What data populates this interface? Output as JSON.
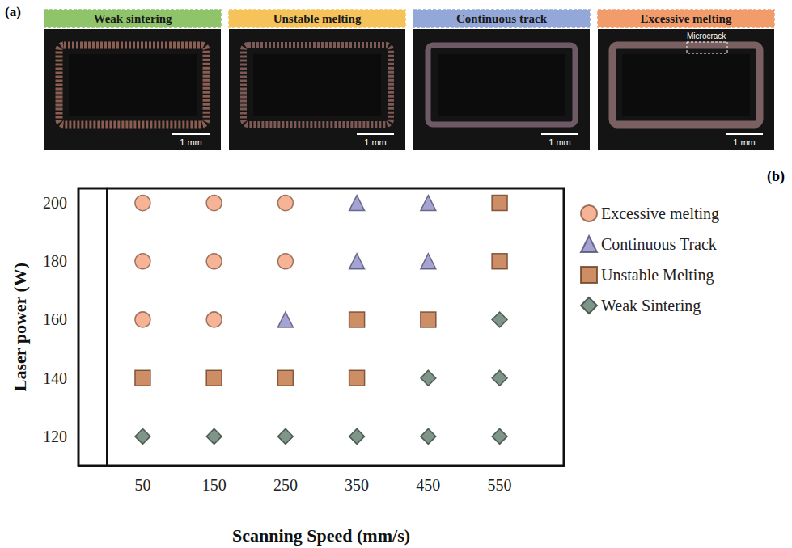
{
  "panel_a": {
    "label": "(a)",
    "panels": [
      {
        "title": "Weak sintering",
        "color": "#8fc46a",
        "scale_bar": "1 mm"
      },
      {
        "title": "Unstable melting",
        "color": "#f5c35a",
        "scale_bar": "1 mm"
      },
      {
        "title": "Continuous track",
        "color": "#93a8d8",
        "scale_bar": "1 mm"
      },
      {
        "title": "Excessive melting",
        "color": "#f29c6b",
        "scale_bar": "1 mm",
        "annotation": "Microcrack"
      }
    ]
  },
  "chart_data": {
    "type": "scatter",
    "panel_label": "(b)",
    "x_label": "Scanning Speed (mm/s)",
    "y_label": "Laser power (W)",
    "xlim": [
      -40,
      640
    ],
    "xticks": [
      50,
      150,
      250,
      350,
      450,
      550
    ],
    "ylim": [
      110,
      205
    ],
    "yticks": [
      120,
      140,
      160,
      180,
      200
    ],
    "grid": false,
    "legend": "right",
    "series": [
      {
        "name": "Excessive melting",
        "color": "#f4a07a",
        "marker": "circle",
        "x": [
          50,
          150,
          250,
          50,
          150,
          250,
          50,
          150
        ],
        "values": [
          200,
          200,
          200,
          180,
          180,
          180,
          160,
          160
        ]
      },
      {
        "name": "Continuous Track",
        "color": "#8f8cc8",
        "marker": "triangle",
        "x": [
          350,
          450,
          350,
          450,
          250
        ],
        "values": [
          200,
          200,
          180,
          180,
          160
        ]
      },
      {
        "name": "Unstable Melting",
        "color": "#c0703e",
        "marker": "square",
        "x": [
          550,
          550,
          350,
          450,
          50,
          150,
          250,
          350
        ],
        "values": [
          200,
          180,
          160,
          160,
          140,
          140,
          140,
          140
        ]
      },
      {
        "name": "Weak Sintering",
        "color": "#5f7a6c",
        "marker": "diamond",
        "x": [
          550,
          450,
          550,
          50,
          150,
          250,
          350,
          450,
          550
        ],
        "values": [
          160,
          140,
          140,
          120,
          120,
          120,
          120,
          120,
          120
        ]
      }
    ]
  }
}
